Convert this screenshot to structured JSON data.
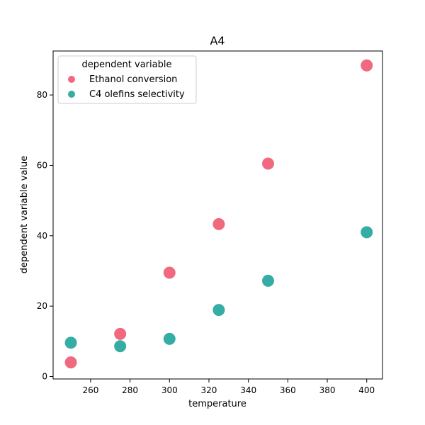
{
  "chart_data": {
    "type": "scatter",
    "title": "A4",
    "xlabel": "temperature",
    "ylabel": "dependent variable value",
    "xlim": [
      241,
      408
    ],
    "ylim": [
      -0.7,
      92.5
    ],
    "xticks": [
      260,
      280,
      300,
      320,
      340,
      360,
      380,
      400
    ],
    "yticks": [
      0,
      20,
      40,
      60,
      80
    ],
    "grid": false,
    "legend": {
      "title": "dependent variable",
      "placement": "top-left"
    },
    "series": [
      {
        "name": "Ethanol conversion",
        "color": "#f0697f",
        "points": [
          {
            "x": 250,
            "y": 4.0
          },
          {
            "x": 275,
            "y": 12.1
          },
          {
            "x": 300,
            "y": 29.5
          },
          {
            "x": 325,
            "y": 43.3
          },
          {
            "x": 350,
            "y": 60.5
          },
          {
            "x": 400,
            "y": 88.4
          }
        ]
      },
      {
        "name": "C4 olefins selectivity",
        "color": "#36ada4",
        "points": [
          {
            "x": 250,
            "y": 9.6
          },
          {
            "x": 275,
            "y": 8.6
          },
          {
            "x": 300,
            "y": 10.7
          },
          {
            "x": 325,
            "y": 18.9
          },
          {
            "x": 350,
            "y": 27.2
          },
          {
            "x": 400,
            "y": 41.0
          }
        ]
      }
    ]
  }
}
